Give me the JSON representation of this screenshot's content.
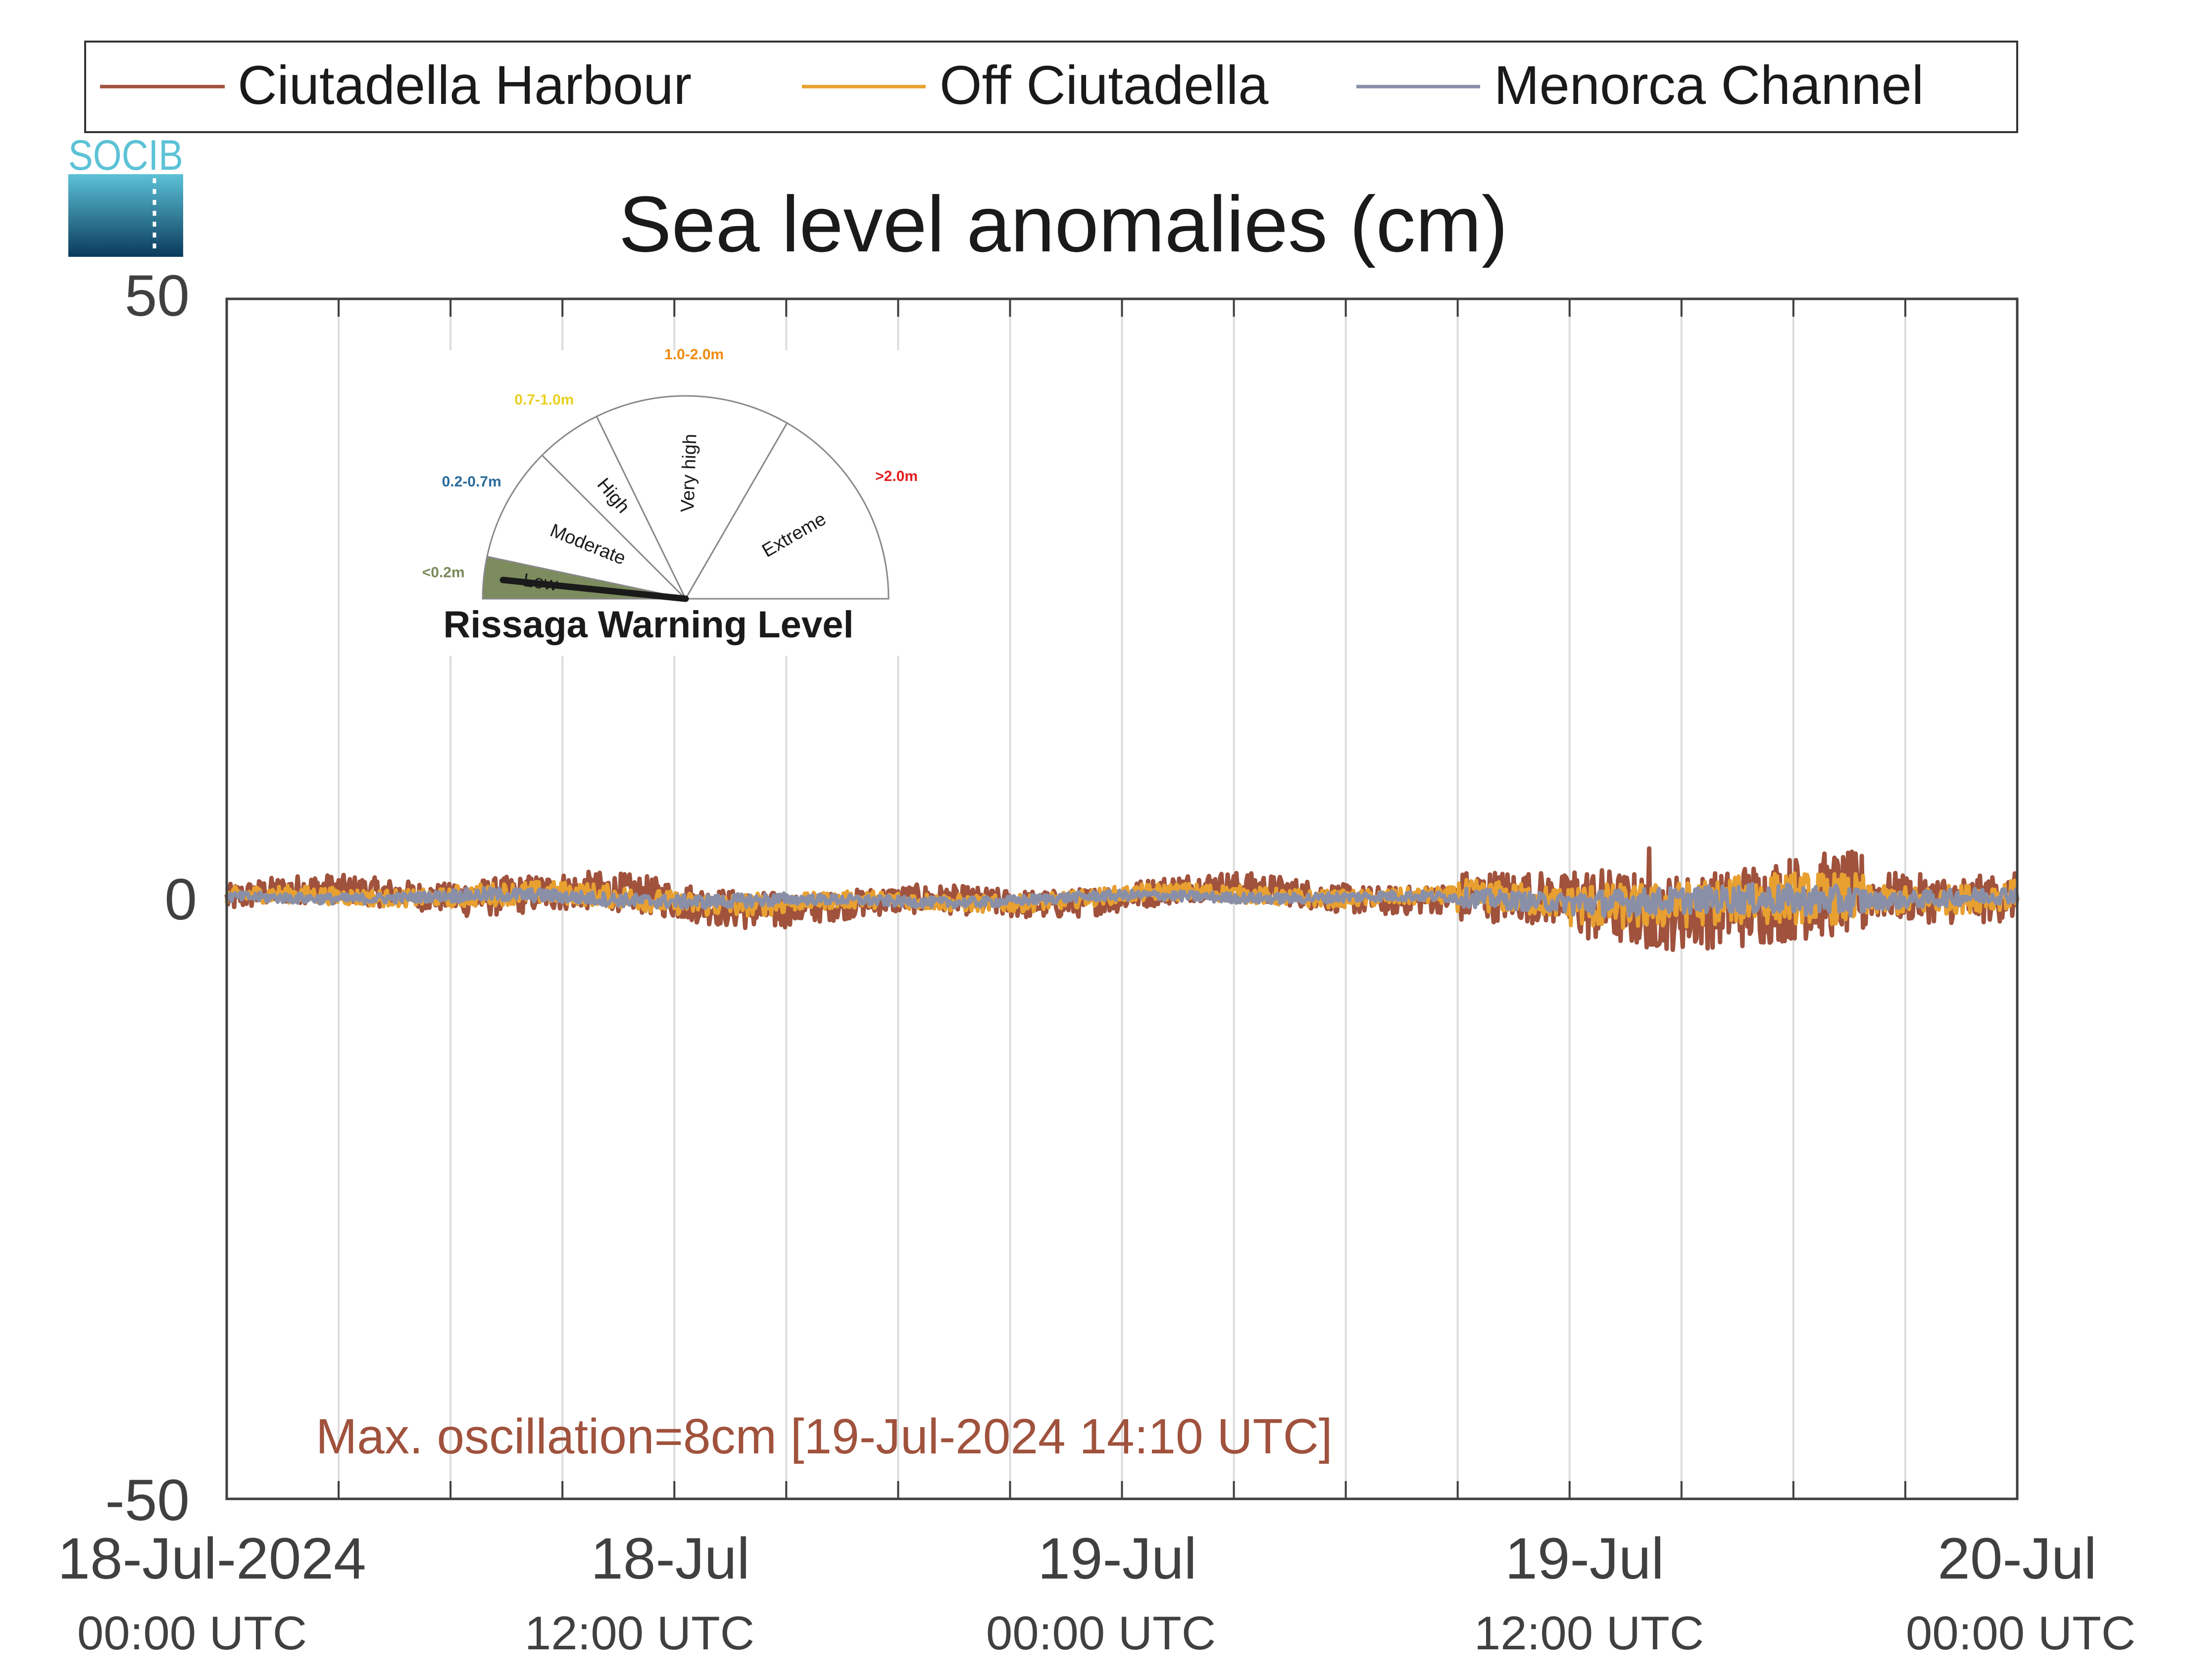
{
  "logo": {
    "text": "SOCIB"
  },
  "chart_data": {
    "type": "line",
    "title": "Sea level anomalies (cm)",
    "xlabel": "",
    "ylabel": "",
    "ylim": [
      -50,
      50
    ],
    "yticks": [
      "50",
      "0",
      "-50"
    ],
    "x_range_hours": [
      0,
      48
    ],
    "x_tick_labels": [
      {
        "date": "18-Jul-2024",
        "time": "00:00 UTC"
      },
      {
        "date": "18-Jul",
        "time": "12:00 UTC"
      },
      {
        "date": "19-Jul",
        "time": "00:00 UTC"
      },
      {
        "date": "19-Jul",
        "time": "12:00 UTC"
      },
      {
        "date": "20-Jul",
        "time": "00:00 UTC"
      }
    ],
    "grid": "vertical, every 3 hours",
    "legend_position": "top",
    "series": [
      {
        "name": "Ciutadella Harbour",
        "color": "#a0523d",
        "description_values_cm": {
          "typical_range": [
            -2,
            2
          ],
          "max_oscillation": 8
        }
      },
      {
        "name": "Off Ciutadella",
        "color": "#e8a030",
        "description_values_cm": {
          "typical_range": [
            -1.5,
            1.5
          ]
        }
      },
      {
        "name": "Menorca Channel",
        "color": "#8a8fa8",
        "description_values_cm": {
          "typical_range": [
            -1,
            1
          ]
        }
      }
    ],
    "annotation": "Max. oscillation=8cm [19-Jul-2024 14:10 UTC]",
    "annotation_color": "#a0523d"
  },
  "gauge": {
    "title": "Rissaga Warning Level",
    "sectors": [
      {
        "label": "Low",
        "range": "<0.2m",
        "range_color": "#7a8a5a"
      },
      {
        "label": "Moderate",
        "range": "0.2-0.7m",
        "range_color": "#2a6a9a"
      },
      {
        "label": "High",
        "range": "0.7-1.0m",
        "range_color": "#e8d020"
      },
      {
        "label": "Very high",
        "range": "1.0-2.0m",
        "range_color": "#f08a10"
      },
      {
        "label": "Extreme",
        "range": ">2.0m",
        "range_color": "#e02020"
      }
    ],
    "active_level": "Low",
    "active_color": "#7d8c5e"
  }
}
